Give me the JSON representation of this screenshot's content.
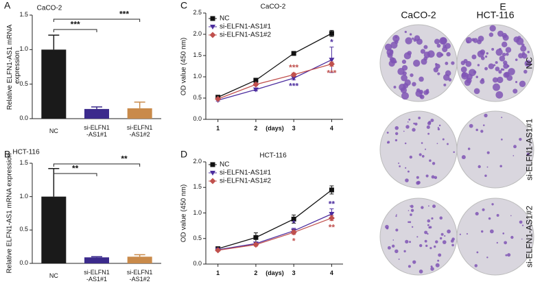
{
  "chart_data": [
    {
      "type": "bar",
      "panel": "A",
      "title": "CaCO-2",
      "y_label": "Relative ELFN1-AS1 mRNA\nexpression",
      "categories": [
        "NC",
        "si-ELFN1\n-AS1#1",
        "si-ELFN1\n-AS1#2"
      ],
      "values": [
        1.0,
        0.14,
        0.15
      ],
      "errors": [
        0.21,
        0.03,
        0.09
      ],
      "colors": [
        "#1a1a1a",
        "#3b2a8c",
        "#c98a4a"
      ],
      "ylim": [
        0,
        1.5
      ],
      "yticks": [
        {
          "value": 0,
          "label": "0.0"
        },
        0.5,
        {
          "value": 1,
          "label": "1.0"
        },
        1.5
      ],
      "annotations": [
        "***",
        "***"
      ]
    },
    {
      "type": "bar",
      "panel": "B",
      "title": "HCT-116",
      "y_label": "Relative ELFN1-AS1 mRNA expression",
      "categories": [
        "NC",
        "si-ELFN1\n-AS1#1",
        "si-ELFN1\n-AS1#2"
      ],
      "values": [
        1.0,
        0.09,
        0.1
      ],
      "errors": [
        0.42,
        0.01,
        0.03
      ],
      "colors": [
        "#1a1a1a",
        "#3b2a8c",
        "#c98a4a"
      ],
      "ylim": [
        0,
        1.5
      ],
      "yticks": [
        {
          "value": 0,
          "label": "0.0"
        },
        0.5,
        {
          "value": 1,
          "label": "1.0"
        },
        1.5
      ],
      "annotations": [
        "**",
        "**"
      ]
    },
    {
      "type": "line",
      "panel": "C",
      "title": "CaCO-2",
      "y_label": "OD value (450 nm)",
      "x_label": "(days)",
      "x": [
        1,
        2,
        3,
        4
      ],
      "xlim": [
        0.68,
        4.3
      ],
      "xticks": [
        1,
        2,
        3,
        4
      ],
      "ylim": [
        0,
        2.5
      ],
      "yticks": [
        {
          "value": 0,
          "label": "0.0"
        },
        0.5,
        {
          "value": 1,
          "label": "1.0"
        },
        1.5,
        {
          "value": 2,
          "label": "2.0"
        },
        2.5
      ],
      "series": [
        {
          "name": "NC",
          "color": "#111111",
          "values": [
            0.52,
            0.92,
            1.55,
            2.02
          ],
          "errors": [
            0.03,
            0.04,
            0.03,
            0.07
          ],
          "significance": [
            null,
            null,
            null,
            null
          ]
        },
        {
          "name": "si-ELFN1-AS1#1",
          "color": "#4b2c9e",
          "values": [
            0.45,
            0.7,
            0.97,
            1.4
          ],
          "errors": [
            0.02,
            0.03,
            0.04,
            0.3
          ],
          "significance": [
            null,
            null,
            "***",
            "*"
          ]
        },
        {
          "name": "si-ELFN1-AS1#2",
          "color": "#c0504d",
          "values": [
            0.48,
            0.82,
            1.05,
            1.3
          ],
          "errors": [
            0.02,
            0.03,
            0.04,
            0.05
          ],
          "significance": [
            null,
            null,
            "***",
            "***"
          ]
        }
      ]
    },
    {
      "type": "line",
      "panel": "D",
      "title": "HCT-116",
      "y_label": "OD value (450 nm)",
      "x_label": "(days)",
      "x": [
        1,
        2,
        3,
        4
      ],
      "xlim": [
        0.68,
        4.3
      ],
      "xticks": [
        1,
        2,
        3,
        4
      ],
      "ylim": [
        0,
        2
      ],
      "yticks": [
        {
          "value": 0,
          "label": "0.0"
        },
        0.5,
        {
          "value": 1,
          "label": "1.0"
        },
        1.5,
        {
          "value": 2,
          "label": "2.0"
        }
      ],
      "series": [
        {
          "name": "NC",
          "color": "#111111",
          "values": [
            0.3,
            0.52,
            0.88,
            1.45
          ],
          "errors": [
            0.02,
            0.09,
            0.08,
            0.08
          ],
          "significance": [
            null,
            null,
            null,
            null
          ]
        },
        {
          "name": "si-ELFN1-AS1#1",
          "color": "#4b2c9e",
          "values": [
            0.28,
            0.4,
            0.65,
            0.98
          ],
          "errors": [
            0.02,
            0.03,
            0.05,
            0.1
          ],
          "significance": [
            null,
            null,
            "*",
            "**"
          ]
        },
        {
          "name": "si-ELFN1-AS1#2",
          "color": "#c0504d",
          "values": [
            0.27,
            0.38,
            0.62,
            0.9
          ],
          "errors": [
            0.02,
            0.03,
            0.04,
            0.05
          ],
          "significance": [
            null,
            null,
            "*",
            "**"
          ]
        }
      ]
    }
  ],
  "panel_e": {
    "label": "E",
    "columns": [
      "CaCO-2",
      "HCT-116"
    ],
    "rows": [
      "NC",
      "si-ELFN1-AS1#1",
      "si-ELFN1-AS1#2"
    ]
  }
}
